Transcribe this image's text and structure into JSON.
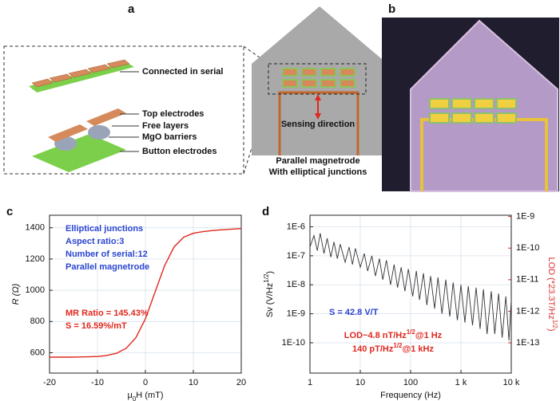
{
  "panel_labels": [
    "a",
    "b",
    "c",
    "d"
  ],
  "diagram": {
    "labels": [
      "Connected in serial",
      "Top electrodes",
      "Free layers",
      "MgO barriers",
      "Button electrodes"
    ],
    "sensing": "Sensing direction",
    "caption": [
      "Parallel magnetrode",
      "With elliptical junctions"
    ]
  },
  "chart_data": [
    {
      "type": "line",
      "x_label": {
        "text": "μ",
        "sub": "0",
        "tail": "H (mT)"
      },
      "y_label": {
        "text": "R",
        "tail": " (Ω)"
      },
      "x": [
        -20,
        -18,
        -16,
        -14,
        -12,
        -10,
        -8,
        -6,
        -4,
        -2,
        0,
        2,
        4,
        6,
        8,
        10,
        12,
        14,
        16,
        18,
        20
      ],
      "values": [
        572,
        572,
        572,
        573,
        574,
        576,
        583,
        597,
        629,
        696,
        817,
        987,
        1157,
        1278,
        1340,
        1365,
        1375,
        1382,
        1387,
        1391,
        1395
      ],
      "color": "#e0281e",
      "xlim": [
        -20,
        20
      ],
      "xticks": [
        -20,
        -10,
        0,
        10,
        20
      ],
      "ylim": [
        470,
        1480
      ],
      "yticks": [
        600,
        800,
        1000,
        1200,
        1400
      ],
      "grid": true,
      "annotations": [
        {
          "text": "Elliptical junctions",
          "color": "#2a45d0"
        },
        {
          "text": "Aspect ratio:3",
          "color": "#2a45d0"
        },
        {
          "text": "Number of serial:12",
          "color": "#2a45d0"
        },
        {
          "text": "Parallel magnetrode",
          "color": "#2a45d0"
        },
        {
          "text": "MR Ratio = 145.43%",
          "color": "#e0281e"
        },
        {
          "text": "S = 16.59%/mT",
          "color": "#e0281e"
        }
      ]
    },
    {
      "type": "line",
      "log_x": true,
      "log_y": true,
      "x_label": {
        "text": "Frequency (Hz)"
      },
      "y_label": {
        "text": "Sv (V/Hz",
        "sup": "1/2",
        "tail": ")"
      },
      "y2_label": {
        "text": "LOD (*23.3T/Hz",
        "sup": "1/2",
        "tail": ")"
      },
      "y2_color": "#d9302c",
      "x": [
        1,
        1.2,
        1.4,
        1.6,
        1.9,
        2.2,
        2.6,
        3,
        3.5,
        4,
        5,
        6,
        7,
        8,
        10,
        12,
        14,
        17,
        20,
        24,
        28,
        33,
        40,
        47,
        55,
        65,
        77,
        90,
        110,
        130,
        150,
        180,
        210,
        250,
        300,
        350,
        420,
        500,
        600,
        700,
        850,
        1000,
        1200,
        1400,
        1700,
        2000,
        2400,
        2800,
        3300,
        4000,
        4700,
        5600,
        6600,
        7800,
        9000,
        10000
      ],
      "values": [
        2e-07,
        5e-07,
        1.5e-07,
        6e-07,
        1.2e-07,
        4e-07,
        9e-08,
        3e-07,
        8e-08,
        2.5e-07,
        6e-08,
        2e-07,
        5e-08,
        1.8e-07,
        4e-08,
        1.2e-07,
        3e-08,
        1e-07,
        2e-08,
        8e-08,
        1.5e-08,
        7e-08,
        1e-08,
        5e-08,
        8e-09,
        4e-08,
        6e-09,
        3.5e-08,
        4e-09,
        3e-08,
        3e-09,
        2.5e-08,
        2e-09,
        2e-08,
        1.5e-09,
        1.8e-08,
        1e-09,
        1.5e-08,
        8e-10,
        1.2e-08,
        6e-10,
        1e-08,
        5e-10,
        9e-09,
        4e-10,
        8e-09,
        3e-10,
        7e-09,
        2e-10,
        6e-09,
        2e-10,
        5e-09,
        1.5e-10,
        4e-09,
        1.2e-10,
        3e-09
      ],
      "color": "#333333",
      "xlim": [
        1,
        10000
      ],
      "xticks": [
        1,
        10,
        100,
        {
          "value": 1000,
          "label": "1 k"
        },
        {
          "value": 10000,
          "label": "10 k"
        }
      ],
      "ylim": [
        9e-12,
        2.5e-06
      ],
      "yticks": [
        {
          "value": 1e-10,
          "label": "1E-10"
        },
        {
          "value": 1e-09,
          "label": "1E-9"
        },
        {
          "value": 1e-08,
          "label": "1E-8"
        },
        {
          "value": 1e-07,
          "label": "1E-7"
        },
        {
          "value": 1e-06,
          "label": "1E-6"
        }
      ],
      "y2lim": [
        1.1e-14,
        1.1e-09
      ],
      "y2ticks": [
        {
          "value": 1e-13,
          "label": "1E-13"
        },
        {
          "value": 1e-12,
          "label": "1E-12"
        },
        {
          "value": 1e-11,
          "label": "1E-11"
        },
        {
          "value": 1e-10,
          "label": "1E-10"
        },
        {
          "value": 1e-09,
          "label": "1E-9"
        }
      ],
      "grid": true,
      "annotations": [
        {
          "text": "S = 42.8 V/T",
          "color": "#2a45d0"
        },
        {
          "text": "LOD~4.8 nT/Hz",
          "sup": "1/2",
          "tail": "@1 Hz",
          "color": "#e0281e"
        },
        {
          "text": "140 pT/Hz",
          "sup": "1/2",
          "tail": "@1 kHz",
          "color": "#e0281e"
        }
      ]
    }
  ]
}
